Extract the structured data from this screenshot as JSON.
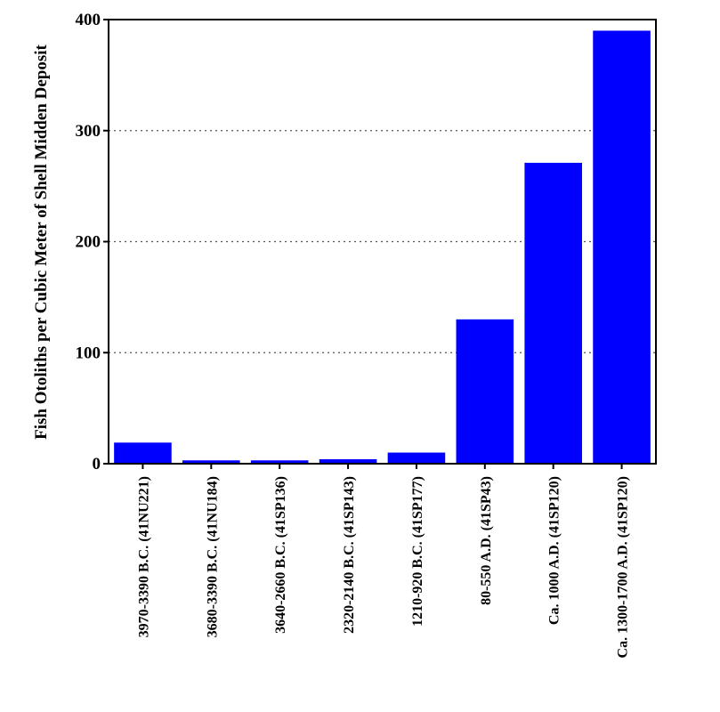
{
  "chart_data": {
    "type": "bar",
    "ylabel": "Fish Otoliths per Cubic Meter of Shell Midden Deposit",
    "xlabel": "",
    "ylim": [
      0,
      400
    ],
    "yticks": [
      0,
      100,
      200,
      300,
      400
    ],
    "grid": "horizontal dotted",
    "bar_color": "#0000ff",
    "categories": [
      "3970-3390 B.C. (41NU221)",
      "3680-3390 B.C. (41NU184)",
      "3640-2660 B.C. (41SP136)",
      "2320-2140 B.C. (41SP143)",
      "1210-920 B.C. (41SP177)",
      "80-550 A.D. (41SP43)",
      "Ca. 1000 A.D. (41SP120)",
      "Ca. 1300-1700 A.D. (41SP120)"
    ],
    "values": [
      19,
      3,
      3,
      4,
      10,
      130,
      271,
      390
    ]
  }
}
